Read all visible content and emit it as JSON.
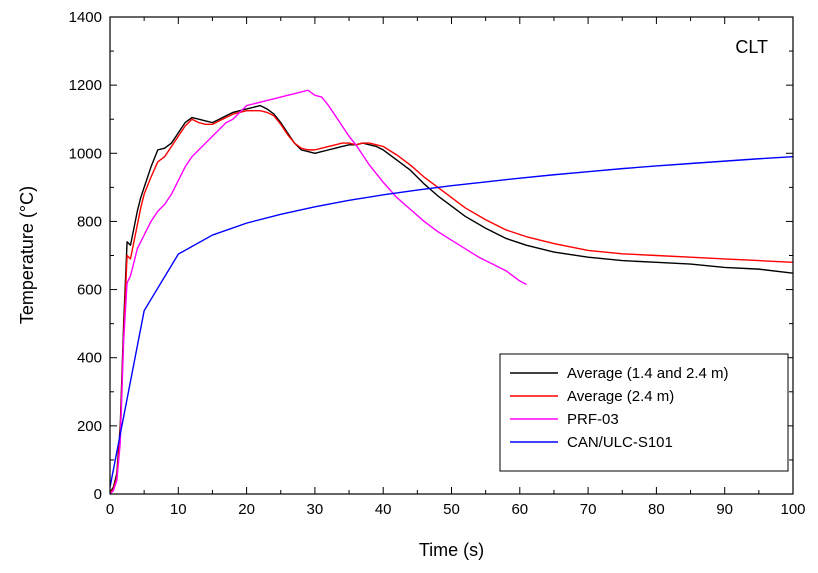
{
  "chart_data": {
    "type": "line",
    "title": "",
    "annotation": "CLT",
    "xlabel": "Time (s)",
    "ylabel": "Temperature (°C)",
    "xlim": [
      0,
      100
    ],
    "ylim": [
      0,
      1400
    ],
    "xticks": [
      0,
      10,
      20,
      30,
      40,
      50,
      60,
      70,
      80,
      90,
      100
    ],
    "yticks": [
      0,
      200,
      400,
      600,
      800,
      1000,
      1200,
      1400
    ],
    "grid": false,
    "legend_position": "lower-right",
    "series": [
      {
        "name": "Average (1.4 and 2.4 m)",
        "color": "#000000",
        "x": [
          0,
          0.5,
          1,
          1.5,
          2,
          2.5,
          3,
          3.5,
          4,
          4.5,
          5,
          6,
          7,
          8,
          9,
          10,
          11,
          12,
          13,
          14,
          15,
          16,
          17,
          18,
          19,
          20,
          21,
          22,
          23,
          24,
          25,
          26,
          27,
          28,
          29,
          30,
          31,
          32,
          33,
          34,
          35,
          36,
          37,
          38,
          39,
          40,
          42,
          44,
          46,
          48,
          50,
          52,
          55,
          58,
          61,
          65,
          70,
          75,
          80,
          85,
          90,
          95,
          100
        ],
        "y": [
          5,
          20,
          60,
          200,
          500,
          740,
          730,
          780,
          830,
          870,
          900,
          960,
          1010,
          1015,
          1030,
          1060,
          1090,
          1105,
          1100,
          1095,
          1090,
          1100,
          1110,
          1120,
          1125,
          1130,
          1135,
          1140,
          1130,
          1115,
          1090,
          1060,
          1030,
          1010,
          1005,
          1000,
          1005,
          1010,
          1015,
          1020,
          1025,
          1025,
          1030,
          1025,
          1020,
          1010,
          980,
          950,
          910,
          875,
          845,
          815,
          780,
          750,
          730,
          710,
          695,
          685,
          680,
          675,
          665,
          660,
          648
        ]
      },
      {
        "name": "Average (2.4 m)",
        "color": "#ff0000",
        "x": [
          0,
          0.5,
          1,
          1.5,
          2,
          2.5,
          3,
          3.5,
          4,
          4.5,
          5,
          6,
          7,
          8,
          9,
          10,
          11,
          12,
          13,
          14,
          15,
          16,
          17,
          18,
          19,
          20,
          21,
          22,
          23,
          24,
          25,
          26,
          27,
          28,
          29,
          30,
          31,
          32,
          33,
          34,
          35,
          36,
          37,
          38,
          39,
          40,
          42,
          44,
          46,
          48,
          50,
          52,
          55,
          58,
          61,
          65,
          70,
          75,
          80,
          85,
          90,
          95,
          100
        ],
        "y": [
          3,
          15,
          50,
          180,
          470,
          700,
          690,
          740,
          790,
          840,
          880,
          930,
          975,
          990,
          1020,
          1050,
          1080,
          1100,
          1090,
          1085,
          1085,
          1095,
          1105,
          1115,
          1120,
          1125,
          1125,
          1125,
          1120,
          1110,
          1085,
          1055,
          1030,
          1015,
          1010,
          1010,
          1015,
          1020,
          1025,
          1030,
          1030,
          1025,
          1030,
          1030,
          1025,
          1020,
          995,
          965,
          930,
          900,
          870,
          840,
          805,
          775,
          755,
          735,
          715,
          705,
          700,
          695,
          690,
          685,
          680
        ]
      },
      {
        "name": "PRF-03",
        "color": "#ff00ff",
        "x": [
          0,
          0.5,
          1,
          1.5,
          2,
          2.5,
          3,
          3.5,
          4,
          5,
          6,
          7,
          8,
          9,
          10,
          11,
          12,
          13,
          14,
          15,
          16,
          17,
          18,
          19,
          20,
          21,
          22,
          23,
          24,
          25,
          26,
          27,
          28,
          29,
          30,
          31,
          32,
          33,
          34,
          35,
          36,
          37,
          38,
          40,
          42,
          44,
          46,
          48,
          50,
          52,
          54,
          56,
          58,
          60,
          61
        ],
        "y": [
          0,
          10,
          40,
          150,
          450,
          620,
          640,
          680,
          720,
          760,
          800,
          830,
          850,
          880,
          920,
          960,
          990,
          1010,
          1030,
          1050,
          1070,
          1090,
          1100,
          1120,
          1140,
          1145,
          1150,
          1155,
          1160,
          1165,
          1170,
          1175,
          1180,
          1185,
          1170,
          1165,
          1140,
          1110,
          1080,
          1050,
          1025,
          995,
          965,
          915,
          870,
          835,
          800,
          770,
          745,
          720,
          695,
          675,
          655,
          625,
          615
        ]
      },
      {
        "name": "CAN/ULC-S101",
        "color": "#0000ff",
        "x": [
          0,
          5,
          10,
          15,
          20,
          25,
          30,
          35,
          40,
          45,
          50,
          55,
          60,
          65,
          70,
          75,
          80,
          85,
          90,
          95,
          100
        ],
        "y": [
          20,
          538,
          704,
          760,
          795,
          821,
          843,
          862,
          878,
          892,
          905,
          916,
          927,
          937,
          946,
          955,
          963,
          970,
          977,
          984,
          990
        ]
      }
    ]
  }
}
